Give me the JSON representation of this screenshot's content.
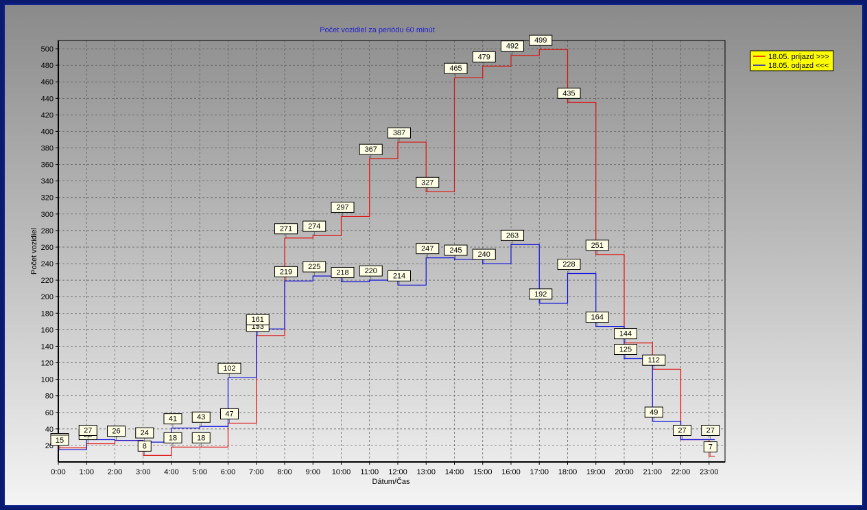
{
  "chart_data": {
    "type": "line",
    "step": true,
    "title": "Počet vozidiel za periódu 60 minút",
    "xlabel": "Dátum/Čas",
    "ylabel": "Počet vozidiel",
    "x": [
      "0:00",
      "1:00",
      "2:00",
      "3:00",
      "4:00",
      "5:00",
      "6:00",
      "7:00",
      "8:00",
      "9:00",
      "10:00",
      "11:00",
      "12:00",
      "13:00",
      "14:00",
      "15:00",
      "16:00",
      "17:00",
      "18:00",
      "19:00",
      "20:00",
      "21:00",
      "22:00",
      "23:00"
    ],
    "ylim": [
      0,
      510
    ],
    "yticks": [
      20,
      40,
      60,
      80,
      100,
      120,
      140,
      160,
      180,
      200,
      220,
      240,
      260,
      280,
      300,
      320,
      340,
      360,
      380,
      400,
      420,
      440,
      460,
      480,
      500
    ],
    "grid": true,
    "legend_position": "top-right",
    "series": [
      {
        "name": "18.05.  príjazd >>>",
        "color": "#e01010",
        "values": [
          17,
          22,
          26,
          8,
          18,
          18,
          47,
          153,
          271,
          274,
          297,
          367,
          387,
          327,
          465,
          479,
          492,
          499,
          435,
          251,
          144,
          112,
          27,
          7
        ]
      },
      {
        "name": "18.05.  odjazd <<<",
        "color": "#1010e0",
        "values": [
          15,
          27,
          26,
          24,
          41,
          43,
          102,
          161,
          219,
          225,
          218,
          220,
          214,
          247,
          245,
          240,
          263,
          192,
          228,
          164,
          125,
          49,
          27,
          27
        ]
      }
    ]
  }
}
